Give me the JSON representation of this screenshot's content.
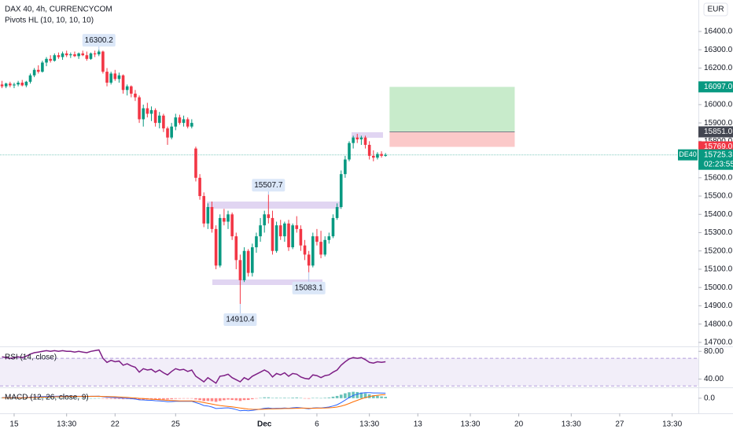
{
  "chart_data": {
    "type": "candlestick",
    "title": "DAX 40, 4h, CURRENCYCOM",
    "indicator_label": "Pivots HL (10, 10, 10, 10)",
    "currency": "EUR",
    "xlim": [
      -0.5,
      172.5
    ],
    "xticks": [
      {
        "value": 3,
        "label": "15"
      },
      {
        "value": 16,
        "label": "13:30"
      },
      {
        "value": 28,
        "label": "22"
      },
      {
        "value": 43,
        "label": "25"
      },
      {
        "value": 65,
        "label": "Dec"
      },
      {
        "value": 78,
        "label": "6"
      },
      {
        "value": 91,
        "label": "13:30"
      },
      {
        "value": 103,
        "label": "13"
      },
      {
        "value": 116,
        "label": "13:30"
      },
      {
        "value": 128,
        "label": "20"
      },
      {
        "value": 141,
        "label": "13:30"
      },
      {
        "value": 153,
        "label": "27"
      },
      {
        "value": 166,
        "label": "13:30"
      }
    ],
    "ylim": [
      14678,
      16572
    ],
    "yticks": [
      {
        "value": 16400,
        "label": "16400.0"
      },
      {
        "value": 16300,
        "label": "16300.0"
      },
      {
        "value": 16200,
        "label": "16200.0"
      },
      {
        "value": 16100,
        "label": "16100.0"
      },
      {
        "value": 16000,
        "label": "16000.0"
      },
      {
        "value": 15900,
        "label": "15900.0"
      },
      {
        "value": 15800,
        "label": "15800.0"
      },
      {
        "value": 15700,
        "label": "15700.0"
      },
      {
        "value": 15600,
        "label": "15600.0"
      },
      {
        "value": 15500,
        "label": "15500.0"
      },
      {
        "value": 15400,
        "label": "15400.0"
      },
      {
        "value": 15300,
        "label": "15300.0"
      },
      {
        "value": 15200,
        "label": "15200.0"
      },
      {
        "value": 15100,
        "label": "15100.0"
      },
      {
        "value": 15000,
        "label": "15000.0"
      },
      {
        "value": 14900,
        "label": "14900.0"
      },
      {
        "value": 14800,
        "label": "14800.0"
      },
      {
        "value": 14700,
        "label": "14700.0"
      }
    ],
    "up_color": "#089981",
    "down_color": "#f23645",
    "candles": [
      [
        16110,
        16130,
        16090,
        16100
      ],
      [
        16100,
        16120,
        16090,
        16115
      ],
      [
        16115,
        16125,
        16095,
        16105
      ],
      [
        16105,
        16120,
        16090,
        16110
      ],
      [
        16110,
        16130,
        16100,
        16120
      ],
      [
        16120,
        16135,
        16100,
        16105
      ],
      [
        16105,
        16130,
        16095,
        16125
      ],
      [
        16125,
        16170,
        16115,
        16160
      ],
      [
        16160,
        16200,
        16150,
        16190
      ],
      [
        16190,
        16215,
        16170,
        16180
      ],
      [
        16180,
        16240,
        16175,
        16230
      ],
      [
        16230,
        16260,
        16210,
        16250
      ],
      [
        16250,
        16270,
        16230,
        16240
      ],
      [
        16240,
        16280,
        16235,
        16270
      ],
      [
        16270,
        16285,
        16250,
        16260
      ],
      [
        16260,
        16290,
        16245,
        16280
      ],
      [
        16280,
        16295,
        16260,
        16270
      ],
      [
        16270,
        16285,
        16255,
        16275
      ],
      [
        16275,
        16290,
        16260,
        16265
      ],
      [
        16265,
        16285,
        16250,
        16280
      ],
      [
        16280,
        16295,
        16265,
        16270
      ],
      [
        16270,
        16290,
        16240,
        16250
      ],
      [
        16250,
        16285,
        16245,
        16280
      ],
      [
        16280,
        16295,
        16260,
        16275
      ],
      [
        16275,
        16300.2,
        16265,
        16290
      ],
      [
        16290,
        16295,
        16170,
        16180
      ],
      [
        16180,
        16200,
        16100,
        16120
      ],
      [
        16120,
        16180,
        16110,
        16170
      ],
      [
        16170,
        16190,
        16130,
        16140
      ],
      [
        16140,
        16175,
        16120,
        16160
      ],
      [
        16160,
        16165,
        16060,
        16080
      ],
      [
        16080,
        16110,
        16050,
        16100
      ],
      [
        16100,
        16105,
        16040,
        16060
      ],
      [
        16060,
        16080,
        16020,
        16040
      ],
      [
        16040,
        16050,
        15900,
        15920
      ],
      [
        15920,
        16000,
        15880,
        15980
      ],
      [
        15980,
        16010,
        15930,
        15950
      ],
      [
        15950,
        15990,
        15910,
        15970
      ],
      [
        15970,
        15980,
        15880,
        15900
      ],
      [
        15900,
        15960,
        15870,
        15940
      ],
      [
        15940,
        15950,
        15850,
        15870
      ],
      [
        15870,
        15880,
        15780,
        15820
      ],
      [
        15820,
        15900,
        15810,
        15880
      ],
      [
        15880,
        15950,
        15860,
        15930
      ],
      [
        15930,
        15945,
        15890,
        15900
      ],
      [
        15900,
        15940,
        15880,
        15920
      ],
      [
        15920,
        15930,
        15870,
        15880
      ],
      [
        15880,
        15920,
        15870,
        15900
      ],
      [
        15760,
        15770,
        15580,
        15600
      ],
      [
        15600,
        15620,
        15480,
        15500
      ],
      [
        15500,
        15520,
        15330,
        15350
      ],
      [
        15350,
        15460,
        15320,
        15440
      ],
      [
        15440,
        15470,
        15300,
        15320
      ],
      [
        15320,
        15340,
        15100,
        15120
      ],
      [
        15120,
        15400,
        15110,
        15380
      ],
      [
        15380,
        15430,
        15340,
        15360
      ],
      [
        15360,
        15420,
        15320,
        15400
      ],
      [
        15400,
        15410,
        15260,
        15280
      ],
      [
        15280,
        15300,
        15100,
        15150
      ],
      [
        15150,
        15180,
        14910.4,
        15040
      ],
      [
        15040,
        15220,
        15030,
        15200
      ],
      [
        15200,
        15210,
        15060,
        15080
      ],
      [
        15080,
        15240,
        15060,
        15220
      ],
      [
        15220,
        15300,
        15190,
        15280
      ],
      [
        15280,
        15380,
        15250,
        15340
      ],
      [
        15340,
        15420,
        15300,
        15400
      ],
      [
        15400,
        15507.7,
        15350,
        15380
      ],
      [
        15380,
        15420,
        15180,
        15200
      ],
      [
        15200,
        15360,
        15190,
        15340
      ],
      [
        15340,
        15370,
        15260,
        15280
      ],
      [
        15280,
        15360,
        15250,
        15350
      ],
      [
        15350,
        15370,
        15200,
        15220
      ],
      [
        15220,
        15350,
        15210,
        15340
      ],
      [
        15340,
        15390,
        15300,
        15320
      ],
      [
        15320,
        15340,
        15200,
        15230
      ],
      [
        15230,
        15260,
        15150,
        15180
      ],
      [
        15180,
        15200,
        15083.1,
        15120
      ],
      [
        15120,
        15300,
        15110,
        15280
      ],
      [
        15280,
        15320,
        15230,
        15250
      ],
      [
        15250,
        15310,
        15160,
        15180
      ],
      [
        15180,
        15280,
        15170,
        15260
      ],
      [
        15260,
        15300,
        15240,
        15280
      ],
      [
        15280,
        15400,
        15270,
        15380
      ],
      [
        15380,
        15460,
        15370,
        15440
      ],
      [
        15440,
        15640,
        15430,
        15620
      ],
      [
        15620,
        15720,
        15600,
        15700
      ],
      [
        15700,
        15800,
        15690,
        15790
      ],
      [
        15790,
        15830,
        15760,
        15820
      ],
      [
        15820,
        15840,
        15790,
        15810
      ],
      [
        15810,
        15830,
        15780,
        15820
      ],
      [
        15820,
        15830,
        15760,
        15780
      ],
      [
        15780,
        15800,
        15700,
        15720
      ],
      [
        15720,
        15750,
        15690,
        15710
      ],
      [
        15710,
        15740,
        15700,
        15730
      ],
      [
        15730,
        15745,
        15710,
        15720
      ],
      [
        15720,
        15735,
        15715,
        15725.3
      ]
    ],
    "pivots": [
      {
        "index": 24,
        "value": 16300.2,
        "side": "high"
      },
      {
        "index": 66,
        "value": 15507.7,
        "side": "high"
      },
      {
        "index": 59,
        "value": 14910.4,
        "side": "low"
      },
      {
        "index": 76,
        "value": 15083.1,
        "side": "low"
      }
    ],
    "position": {
      "start": 96,
      "end": 127,
      "entry": 15851,
      "target": 16097,
      "stop": 15769,
      "profit_color": "#c8ebcb",
      "loss_color": "#fbc9c9"
    },
    "price_tags": [
      {
        "value": 16097,
        "label": "16097.0",
        "color": "#089981"
      },
      {
        "value": 15851,
        "label": "15851.0",
        "color": "#434651"
      },
      {
        "value": 15769,
        "label": "15769.0",
        "color": "#f23645"
      }
    ],
    "last_price": {
      "value": 15725.3,
      "symbol": "DE40",
      "countdown": "02:23:55",
      "color": "#089981"
    },
    "rsi": {
      "label": "RSI (14, close)",
      "color": "#7e1f86",
      "ylim": [
        28,
        86
      ],
      "band": [
        30,
        70
      ],
      "yticks": [
        {
          "value": 80,
          "label": "80.00"
        },
        {
          "value": 40,
          "label": "40.00"
        }
      ],
      "values": [
        72,
        71,
        70,
        71,
        72,
        71,
        73,
        76,
        78,
        79,
        80,
        81,
        80,
        81,
        80,
        81,
        80,
        80,
        79,
        80,
        79,
        78,
        80,
        81,
        82,
        70,
        64,
        67,
        65,
        66,
        60,
        62,
        59,
        57,
        50,
        55,
        53,
        54,
        50,
        53,
        49,
        46,
        51,
        55,
        53,
        54,
        51,
        53,
        44,
        40,
        36,
        42,
        38,
        34,
        44,
        45,
        47,
        42,
        39,
        36,
        42,
        39,
        44,
        47,
        50,
        53,
        50,
        43,
        48,
        46,
        49,
        44,
        48,
        47,
        43,
        41,
        40,
        46,
        45,
        42,
        45,
        46,
        50,
        53,
        60,
        65,
        69,
        71,
        70,
        71,
        68,
        64,
        63,
        65,
        64,
        65
      ]
    },
    "macd": {
      "label": "MACD (12, 26, close, 9)",
      "ylim": [
        -120,
        80
      ],
      "yticks": [
        {
          "value": 0,
          "label": "0.0"
        }
      ],
      "macd_color": "#2962ff",
      "signal_color": "#ff6d00",
      "hist_up_color": "#26a69a",
      "hist_down_color": "#ff5252",
      "macd": [
        5,
        5,
        4,
        4,
        5,
        5,
        6,
        8,
        10,
        11,
        13,
        14,
        15,
        15,
        16,
        16,
        16,
        16,
        15,
        15,
        15,
        14,
        15,
        15,
        16,
        12,
        8,
        7,
        5,
        4,
        0,
        -1,
        -4,
        -7,
        -13,
        -14,
        -16,
        -17,
        -20,
        -21,
        -24,
        -28,
        -27,
        -25,
        -25,
        -24,
        -25,
        -24,
        -35,
        -45,
        -58,
        -62,
        -70,
        -82,
        -80,
        -78,
        -76,
        -82,
        -90,
        -100,
        -97,
        -100,
        -96,
        -92,
        -86,
        -80,
        -78,
        -82,
        -80,
        -80,
        -78,
        -80,
        -76,
        -74,
        -76,
        -80,
        -84,
        -78,
        -76,
        -78,
        -74,
        -70,
        -62,
        -52,
        -35,
        -15,
        5,
        22,
        32,
        40,
        44,
        44,
        42,
        42,
        41,
        40
      ],
      "signal": [
        3,
        3,
        3,
        4,
        4,
        4,
        5,
        5,
        6,
        7,
        8,
        9,
        10,
        11,
        12,
        13,
        13,
        14,
        14,
        14,
        14,
        14,
        15,
        15,
        15,
        14,
        13,
        12,
        11,
        10,
        8,
        6,
        4,
        2,
        -1,
        -3,
        -6,
        -8,
        -10,
        -12,
        -14,
        -17,
        -19,
        -20,
        -21,
        -22,
        -22,
        -22,
        -25,
        -29,
        -35,
        -40,
        -46,
        -53,
        -58,
        -62,
        -65,
        -68,
        -73,
        -78,
        -82,
        -86,
        -88,
        -89,
        -88,
        -87,
        -85,
        -85,
        -84,
        -83,
        -82,
        -82,
        -81,
        -80,
        -79,
        -79,
        -80,
        -80,
        -79,
        -79,
        -78,
        -76,
        -74,
        -70,
        -63,
        -54,
        -42,
        -29,
        -17,
        -5,
        5,
        13,
        19,
        23,
        27,
        29
      ],
      "histogram": [
        2,
        2,
        1,
        0,
        1,
        1,
        1,
        3,
        4,
        4,
        5,
        5,
        5,
        4,
        4,
        3,
        3,
        2,
        1,
        1,
        1,
        0,
        0,
        0,
        1,
        -2,
        -5,
        -5,
        -6,
        -6,
        -8,
        -7,
        -8,
        -9,
        -12,
        -11,
        -10,
        -9,
        -10,
        -9,
        -10,
        -11,
        -8,
        -5,
        -4,
        -2,
        -3,
        -2,
        -10,
        -16,
        -23,
        -22,
        -24,
        -29,
        -22,
        -16,
        -11,
        -14,
        -17,
        -22,
        -15,
        -14,
        -8,
        -3,
        2,
        7,
        7,
        3,
        4,
        3,
        4,
        2,
        5,
        6,
        3,
        -1,
        -4,
        2,
        3,
        1,
        4,
        6,
        12,
        18,
        28,
        39,
        47,
        51,
        49,
        45,
        39,
        31,
        23,
        19,
        14,
        11
      ]
    }
  }
}
